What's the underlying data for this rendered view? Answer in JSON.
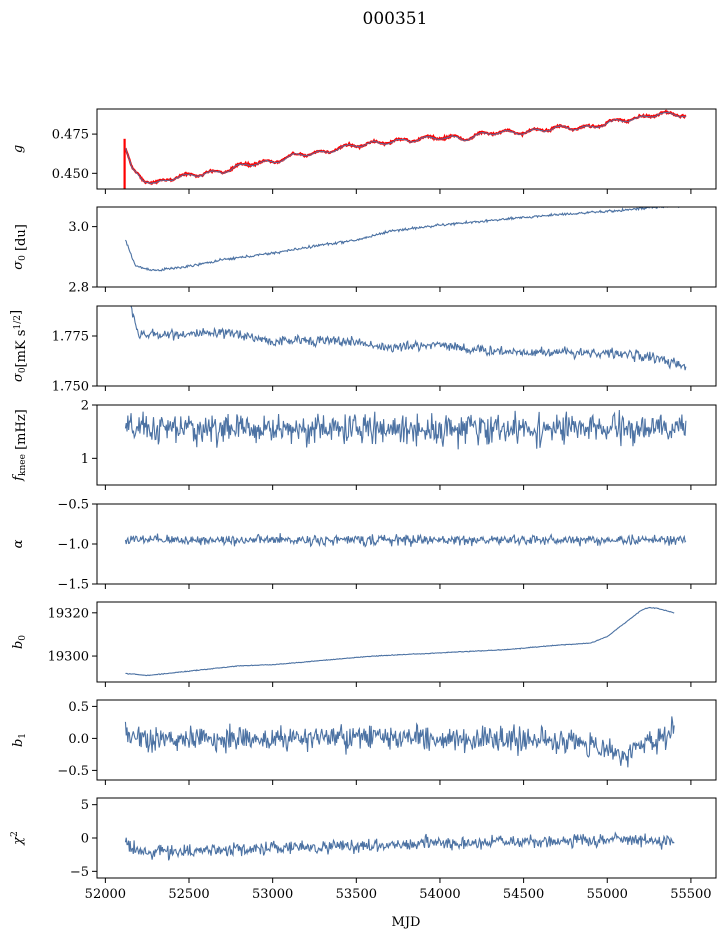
{
  "title": "000351",
  "xlabel": "MJD",
  "x_ticks": [
    52000,
    52500,
    53000,
    53500,
    54000,
    54500,
    55000,
    55500
  ],
  "colors": {
    "series": "#4c72a3",
    "highlight": "#ff0000",
    "frame": "#000000"
  },
  "chart_data": [
    {
      "type": "line",
      "ylabel_parts": [
        {
          "t": "g",
          "style": "italic"
        }
      ],
      "xlim": [
        51950,
        55650
      ],
      "ylim": [
        0.44,
        0.491
      ],
      "y_ticks": [
        {
          "v": 0.45,
          "label": "0.450"
        },
        {
          "v": 0.475,
          "label": "0.475"
        }
      ],
      "x_range": [
        52120,
        55470
      ],
      "npoints": 700,
      "trend": [
        [
          52120,
          0.466
        ],
        [
          52160,
          0.452
        ],
        [
          52230,
          0.446
        ],
        [
          52300,
          0.443
        ],
        [
          52400,
          0.447
        ],
        [
          52600,
          0.45
        ],
        [
          52700,
          0.451
        ],
        [
          52850,
          0.456
        ],
        [
          53000,
          0.457
        ],
        [
          53150,
          0.462
        ],
        [
          53300,
          0.463
        ],
        [
          53400,
          0.466
        ],
        [
          53500,
          0.468
        ],
        [
          53700,
          0.47
        ],
        [
          53900,
          0.472
        ],
        [
          54000,
          0.473
        ],
        [
          54150,
          0.472
        ],
        [
          54300,
          0.476
        ],
        [
          54500,
          0.476
        ],
        [
          54700,
          0.479
        ],
        [
          54900,
          0.479
        ],
        [
          55000,
          0.482
        ],
        [
          55100,
          0.484
        ],
        [
          55200,
          0.485
        ],
        [
          55300,
          0.488
        ],
        [
          55470,
          0.487
        ]
      ],
      "wave": {
        "amp": 0.0012,
        "period": 160
      },
      "noise": 0.0003,
      "highlight": {
        "name": "",
        "offset": 0.0002
      }
    },
    {
      "type": "line",
      "ylabel_parts": [
        {
          "t": "σ",
          "style": "italic"
        },
        {
          "t": "0",
          "sub": true
        },
        {
          "t": " [du]"
        }
      ],
      "xlim": [
        51950,
        55650
      ],
      "ylim": [
        2.8,
        3.065
      ],
      "y_ticks": [
        {
          "v": 2.8,
          "label": "2.8"
        },
        {
          "v": 3.0,
          "label": "3.0"
        }
      ],
      "x_range": [
        52120,
        55470
      ],
      "npoints": 700,
      "trend": [
        [
          52120,
          2.955
        ],
        [
          52180,
          2.87
        ],
        [
          52230,
          2.862
        ],
        [
          52300,
          2.855
        ],
        [
          52500,
          2.868
        ],
        [
          52700,
          2.89
        ],
        [
          53000,
          2.912
        ],
        [
          53300,
          2.94
        ],
        [
          53500,
          2.955
        ],
        [
          53700,
          2.985
        ],
        [
          54000,
          3.005
        ],
        [
          54300,
          3.02
        ],
        [
          54500,
          3.03
        ],
        [
          54700,
          3.04
        ],
        [
          55000,
          3.05
        ],
        [
          55300,
          3.065
        ],
        [
          55470,
          3.07
        ]
      ],
      "noise": 0.003
    },
    {
      "type": "line",
      "ylabel_parts": [
        {
          "t": "σ",
          "style": "italic"
        },
        {
          "t": "0",
          "sub": true
        },
        {
          "t": "[mK s"
        },
        {
          "t": "1/2",
          "sup": true
        },
        {
          "t": "]"
        }
      ],
      "xlim": [
        51950,
        55650
      ],
      "ylim": [
        1.75,
        1.79
      ],
      "y_ticks": [
        {
          "v": 1.75,
          "label": "1.750"
        },
        {
          "v": 1.775,
          "label": "1.775"
        }
      ],
      "x_range": [
        52120,
        55470
      ],
      "npoints": 700,
      "trend": [
        [
          52120,
          1.795
        ],
        [
          52160,
          1.788
        ],
        [
          52200,
          1.775
        ],
        [
          52300,
          1.776
        ],
        [
          52600,
          1.776
        ],
        [
          52800,
          1.776
        ],
        [
          53000,
          1.772
        ],
        [
          53200,
          1.773
        ],
        [
          53500,
          1.772
        ],
        [
          53700,
          1.769
        ],
        [
          54000,
          1.771
        ],
        [
          54200,
          1.768
        ],
        [
          54500,
          1.767
        ],
        [
          54800,
          1.767
        ],
        [
          55100,
          1.766
        ],
        [
          55300,
          1.764
        ],
        [
          55470,
          1.759
        ]
      ],
      "noise": 0.0018
    },
    {
      "type": "line",
      "ylabel_parts": [
        {
          "t": "f",
          "style": "italic"
        },
        {
          "t": "knee",
          "sub": true
        },
        {
          "t": " [mHz]"
        }
      ],
      "xlim": [
        51950,
        55650
      ],
      "ylim": [
        0.5,
        2.0
      ],
      "y_ticks": [
        {
          "v": 1,
          "label": "1"
        },
        {
          "v": 2,
          "label": "2"
        }
      ],
      "x_range": [
        52120,
        55470
      ],
      "npoints": 700,
      "trend": [
        [
          52120,
          1.55
        ],
        [
          55470,
          1.55
        ]
      ],
      "noise": 0.2
    },
    {
      "type": "line",
      "ylabel_parts": [
        {
          "t": "α",
          "style": "italic"
        }
      ],
      "xlim": [
        51950,
        55650
      ],
      "ylim": [
        -1.5,
        -0.5
      ],
      "y_ticks": [
        {
          "v": -1.5,
          "label": "−1.5"
        },
        {
          "v": -1.0,
          "label": "−1.0"
        },
        {
          "v": -0.5,
          "label": "−0.5"
        }
      ],
      "x_range": [
        52120,
        55470
      ],
      "npoints": 700,
      "trend": [
        [
          52120,
          -0.95
        ],
        [
          55470,
          -0.95
        ]
      ],
      "noise": 0.045
    },
    {
      "type": "line",
      "ylabel_parts": [
        {
          "t": "b",
          "style": "italic"
        },
        {
          "t": "0",
          "sub": true
        }
      ],
      "xlim": [
        51950,
        55650
      ],
      "ylim": [
        19288,
        19325
      ],
      "y_ticks": [
        {
          "v": 19300,
          "label": "19300"
        },
        {
          "v": 19320,
          "label": "19320"
        }
      ],
      "x_range": [
        52120,
        55400
      ],
      "npoints": 700,
      "trend": [
        [
          52120,
          19292
        ],
        [
          52250,
          19291
        ],
        [
          52500,
          19293
        ],
        [
          52800,
          19295.5
        ],
        [
          53000,
          19296
        ],
        [
          53300,
          19298
        ],
        [
          53600,
          19300
        ],
        [
          54000,
          19301.5
        ],
        [
          54400,
          19303
        ],
        [
          54700,
          19305
        ],
        [
          54900,
          19306
        ],
        [
          55000,
          19309
        ],
        [
          55100,
          19315
        ],
        [
          55200,
          19321
        ],
        [
          55250,
          19322.5
        ],
        [
          55300,
          19322
        ],
        [
          55400,
          19320
        ]
      ],
      "noise": 0.12
    },
    {
      "type": "line",
      "ylabel_parts": [
        {
          "t": "b",
          "style": "italic"
        },
        {
          "t": "1",
          "sub": true
        }
      ],
      "xlim": [
        51950,
        55650
      ],
      "ylim": [
        -0.65,
        0.6
      ],
      "y_ticks": [
        {
          "v": -0.5,
          "label": "−0.5"
        },
        {
          "v": 0.0,
          "label": "0.0"
        },
        {
          "v": 0.5,
          "label": "0.5"
        }
      ],
      "x_range": [
        52120,
        55400
      ],
      "npoints": 700,
      "trend": [
        [
          52120,
          0.08
        ],
        [
          52300,
          -0.02
        ],
        [
          53000,
          0.0
        ],
        [
          54000,
          0.0
        ],
        [
          54800,
          -0.05
        ],
        [
          55100,
          -0.25
        ],
        [
          55250,
          -0.05
        ],
        [
          55400,
          0.12
        ]
      ],
      "noise": 0.14
    },
    {
      "type": "line",
      "ylabel_parts": [
        {
          "t": "χ",
          "style": "italic"
        },
        {
          "t": "2",
          "sup": true
        }
      ],
      "xlim": [
        51950,
        55650
      ],
      "ylim": [
        -6,
        6
      ],
      "y_ticks": [
        {
          "v": -5,
          "label": "−5"
        },
        {
          "v": 0,
          "label": "0"
        },
        {
          "v": 5,
          "label": "5"
        }
      ],
      "x_range": [
        52120,
        55400
      ],
      "npoints": 700,
      "trend": [
        [
          52120,
          -0.5
        ],
        [
          52200,
          -2.2
        ],
        [
          52400,
          -2.0
        ],
        [
          53000,
          -1.5
        ],
        [
          54000,
          -0.8
        ],
        [
          55000,
          -0.3
        ],
        [
          55400,
          -0.5
        ]
      ],
      "noise": 0.7
    }
  ]
}
